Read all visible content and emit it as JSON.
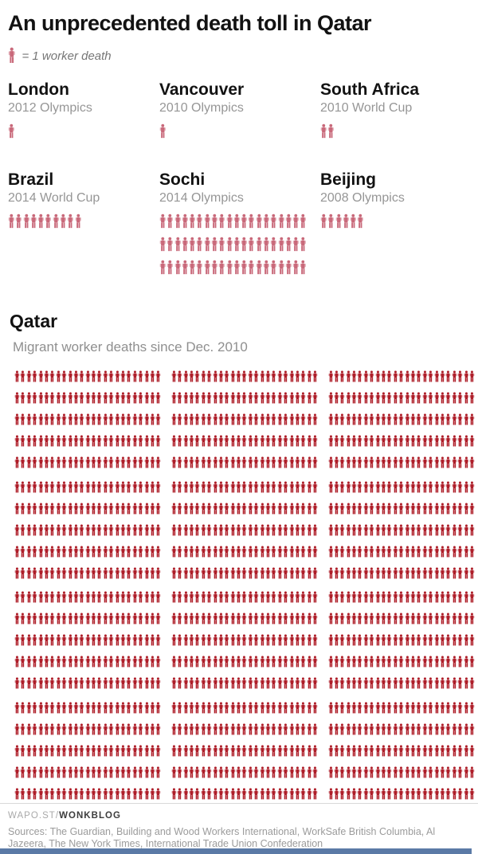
{
  "title": "An unprecedented death toll in Qatar",
  "legend": {
    "icon": "person-icon",
    "label": "= 1 worker death"
  },
  "colors": {
    "comparison_figure": "#c9697a",
    "qatar_figure": "#ae1e29",
    "bottom_bar": "#5b7aa6"
  },
  "events": [
    {
      "name": "London",
      "subtitle": "2012 Olympics",
      "deaths": 1,
      "per_row": 10
    },
    {
      "name": "Vancouver",
      "subtitle": "2010 Olympics",
      "deaths": 1,
      "per_row": 10
    },
    {
      "name": "South Africa",
      "subtitle": "2010 World Cup",
      "deaths": 2,
      "per_row": 10
    },
    {
      "name": "Brazil",
      "subtitle": "2014 World Cup",
      "deaths": 10,
      "per_row": 10
    },
    {
      "name": "Sochi",
      "subtitle": "2014 Olympics",
      "deaths": 60,
      "per_row": 20
    },
    {
      "name": "Beijing",
      "subtitle": "2008 Olympics",
      "deaths": 6,
      "per_row": 10
    }
  ],
  "qatar": {
    "name": "Qatar",
    "subtitle": "Migrant worker deaths since Dec. 2010",
    "deaths": 1500,
    "blocks": 3,
    "figures_per_block_row": 25,
    "rows": 20,
    "rows_per_group": 5
  },
  "footer": {
    "brand_prefix": "WAPO.ST/",
    "brand": "WONKBLOG",
    "sources": "Sources: The Guardian, Building and Wood Workers International, WorkSafe British Columbia, Al Jazeera, The New York Times, International Trade Union Confederation"
  },
  "chart_data": {
    "type": "pictogram",
    "title": "An unprecedented death toll in Qatar",
    "unit": "1 icon = 1 worker death",
    "categories": [
      "London (2012 Olympics)",
      "Vancouver (2010 Olympics)",
      "South Africa (2010 World Cup)",
      "Brazil (2014 World Cup)",
      "Sochi (2014 Olympics)",
      "Beijing (2008 Olympics)",
      "Qatar (migrant worker deaths since Dec. 2010)"
    ],
    "values": [
      1,
      1,
      2,
      10,
      60,
      6,
      1500
    ],
    "legend_entries": [
      "= 1 worker death"
    ],
    "layout": "Qatar figures arranged in 3 columns of 25 icons per row, 20 rows grouped in bands of 5"
  }
}
